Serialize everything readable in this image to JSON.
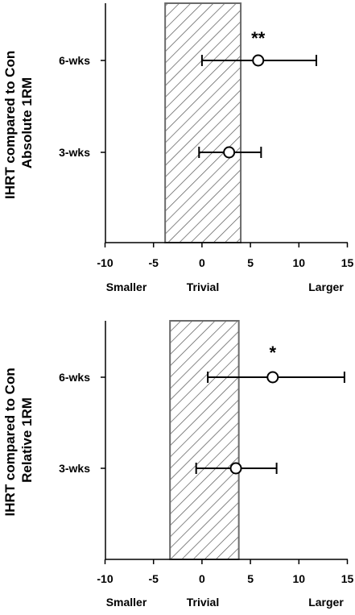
{
  "chart_data": [
    {
      "type": "forest",
      "ylabel": [
        "IHRT compared to Con",
        "Absolute 1RM"
      ],
      "xlim": [
        -10,
        15
      ],
      "xticks": [
        "-10",
        "-5",
        "0",
        "5",
        "10",
        "15"
      ],
      "effect_labels": [
        "Smaller",
        "Trivial",
        "Larger"
      ],
      "trivial_region": [
        -3.8,
        4.0
      ],
      "rows": [
        {
          "label": "6-wks",
          "estimate": 5.8,
          "ci": [
            0.0,
            11.8
          ],
          "significance": "**"
        },
        {
          "label": "3-wks",
          "estimate": 2.8,
          "ci": [
            -0.3,
            6.1
          ],
          "significance": ""
        }
      ]
    },
    {
      "type": "forest",
      "ylabel": [
        "IHRT compared to Con",
        "Relative 1RM"
      ],
      "xlim": [
        -10,
        15
      ],
      "xticks": [
        "-10",
        "-5",
        "0",
        "5",
        "10",
        "15"
      ],
      "effect_labels": [
        "Smaller",
        "Trivial",
        "Larger"
      ],
      "trivial_region": [
        -3.3,
        3.8
      ],
      "rows": [
        {
          "label": "6-wks",
          "estimate": 7.3,
          "ci": [
            0.6,
            14.7
          ],
          "significance": "*"
        },
        {
          "label": "3-wks",
          "estimate": 3.5,
          "ci": [
            -0.6,
            7.7
          ],
          "significance": ""
        }
      ]
    }
  ]
}
